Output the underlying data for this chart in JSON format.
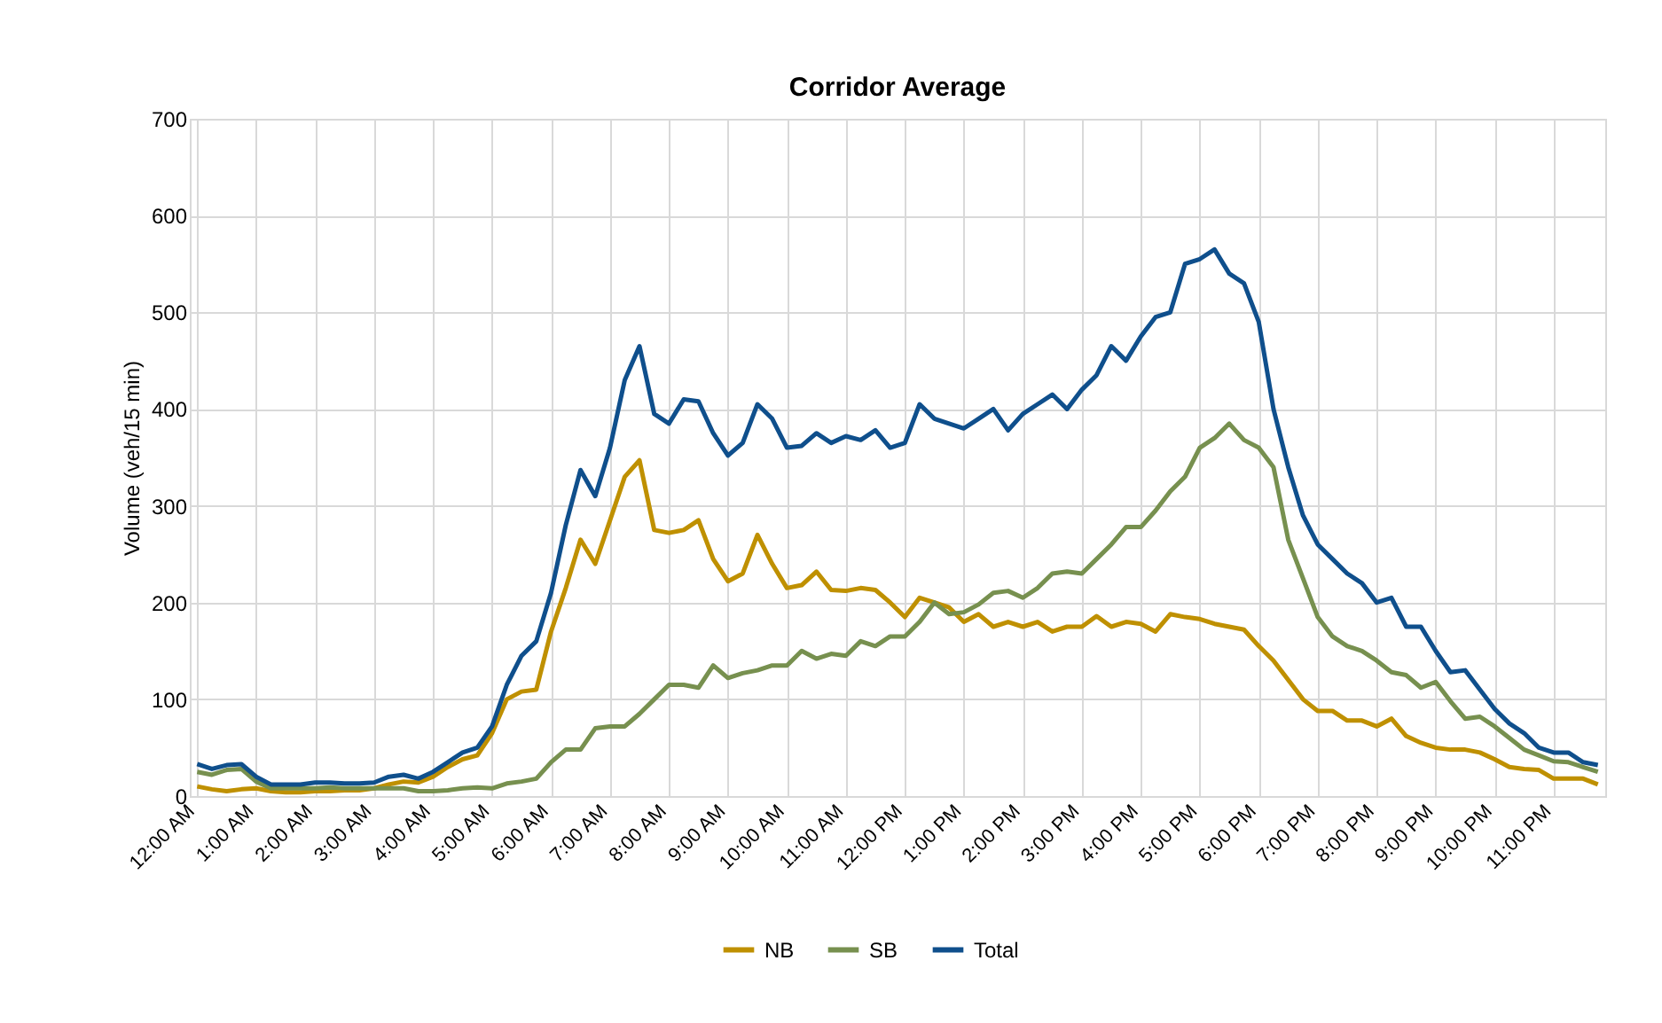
{
  "chart_data": {
    "type": "line",
    "title": "Corridor Average",
    "ylabel": "Volume (veh/15 min)",
    "categories": [
      "12:00 AM",
      null,
      null,
      null,
      "1:00 AM",
      null,
      null,
      null,
      "2:00 AM",
      null,
      null,
      null,
      "3:00 AM",
      null,
      null,
      null,
      "4:00 AM",
      null,
      null,
      null,
      "5:00 AM",
      null,
      null,
      null,
      "6:00 AM",
      null,
      null,
      null,
      "7:00 AM",
      null,
      null,
      null,
      "8:00 AM",
      null,
      null,
      null,
      "9:00 AM",
      null,
      null,
      null,
      "10:00 AM",
      null,
      null,
      null,
      "11:00 AM",
      null,
      null,
      null,
      "12:00 PM",
      null,
      null,
      null,
      "1:00 PM",
      null,
      null,
      null,
      "2:00 PM",
      null,
      null,
      null,
      "3:00 PM",
      null,
      null,
      null,
      "4:00 PM",
      null,
      null,
      null,
      "5:00 PM",
      null,
      null,
      null,
      "6:00 PM",
      null,
      null,
      null,
      "7:00 PM",
      null,
      null,
      null,
      "8:00 PM",
      null,
      null,
      null,
      "9:00 PM",
      null,
      null,
      null,
      "10:00 PM",
      null,
      null,
      null,
      "11:00 PM",
      null,
      null,
      null
    ],
    "series": [
      {
        "name": "NB",
        "color": "#bf9000",
        "values": [
          10,
          7,
          5,
          7,
          8,
          5,
          4,
          4,
          5,
          5,
          6,
          6,
          8,
          12,
          15,
          14,
          20,
          30,
          38,
          42,
          65,
          100,
          108,
          110,
          170,
          215,
          265,
          240,
          285,
          330,
          347,
          275,
          272,
          275,
          285,
          245,
          222,
          230,
          270,
          240,
          215,
          218,
          232,
          213,
          212,
          215,
          213,
          200,
          185,
          205,
          200,
          195,
          180,
          188,
          175,
          180,
          175,
          180,
          170,
          175,
          175,
          186,
          175,
          180,
          178,
          170,
          188,
          185,
          183,
          178,
          175,
          172,
          155,
          140,
          120,
          100,
          88,
          88,
          78,
          78,
          72,
          80,
          62,
          55,
          50,
          48,
          48,
          45,
          38,
          30,
          28,
          27,
          18,
          18,
          18,
          12
        ]
      },
      {
        "name": "SB",
        "color": "#77904f",
        "values": [
          25,
          22,
          27,
          28,
          15,
          8,
          8,
          8,
          8,
          9,
          8,
          8,
          8,
          8,
          8,
          5,
          5,
          6,
          8,
          9,
          8,
          13,
          15,
          18,
          35,
          48,
          48,
          70,
          72,
          72,
          85,
          100,
          115,
          115,
          112,
          135,
          122,
          127,
          130,
          135,
          135,
          150,
          142,
          147,
          145,
          160,
          155,
          165,
          165,
          180,
          200,
          188,
          190,
          198,
          210,
          212,
          205,
          215,
          230,
          232,
          230,
          245,
          260,
          278,
          278,
          295,
          315,
          330,
          360,
          370,
          385,
          368,
          360,
          340,
          265,
          225,
          185,
          165,
          155,
          150,
          140,
          128,
          125,
          112,
          118,
          98,
          80,
          82,
          72,
          60,
          48,
          42,
          36,
          35,
          30,
          25
        ]
      },
      {
        "name": "Total",
        "color": "#0f4f8c",
        "values": [
          33,
          28,
          32,
          33,
          20,
          12,
          12,
          12,
          14,
          14,
          13,
          13,
          14,
          20,
          22,
          18,
          25,
          35,
          45,
          50,
          72,
          115,
          145,
          160,
          210,
          280,
          337,
          310,
          360,
          430,
          465,
          395,
          385,
          410,
          408,
          375,
          352,
          365,
          405,
          390,
          360,
          362,
          375,
          365,
          372,
          368,
          378,
          360,
          365,
          405,
          390,
          385,
          380,
          390,
          400,
          378,
          395,
          405,
          415,
          400,
          420,
          435,
          465,
          450,
          475,
          495,
          500,
          550,
          555,
          565,
          540,
          530,
          490,
          400,
          340,
          290,
          260,
          245,
          230,
          220,
          200,
          205,
          175,
          175,
          150,
          128,
          130,
          110,
          90,
          75,
          65,
          50,
          45,
          45,
          35,
          32
        ]
      }
    ],
    "ylim": [
      0,
      700
    ],
    "yticks": [
      0,
      100,
      200,
      300,
      400,
      500,
      600,
      700
    ],
    "grid": true,
    "legend": "bottom",
    "line_style": "solid",
    "marker": "none"
  }
}
